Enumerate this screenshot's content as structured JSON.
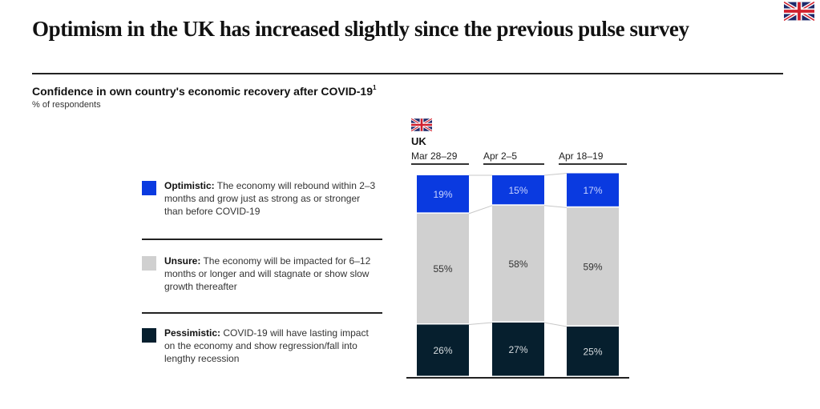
{
  "header": {
    "title": "Optimism in the UK has increased slightly since the previous pulse survey",
    "flag_icon": "uk-flag-icon"
  },
  "chart_data": {
    "type": "bar",
    "stacked": true,
    "title": "Confidence in own country's economic recovery after COVID-19",
    "title_footnote": "1",
    "unit_label": "% of respondents",
    "country": "UK",
    "categories": [
      "Mar 28–29",
      "Apr 2–5",
      "Apr 18–19"
    ],
    "series": [
      {
        "name": "Pessimistic",
        "color": "#061f2e",
        "values": [
          26,
          27,
          25
        ],
        "labels": [
          "26%",
          "27%",
          "25%"
        ],
        "label_color": "#d8dde0"
      },
      {
        "name": "Unsure",
        "color": "#d0d0d0",
        "values": [
          55,
          58,
          59
        ],
        "labels": [
          "55%",
          "58%",
          "59%"
        ],
        "label_color": "#333333"
      },
      {
        "name": "Optimistic",
        "color": "#0a3ae0",
        "values": [
          19,
          15,
          17
        ],
        "labels": [
          "19%",
          "15%",
          "17%"
        ],
        "label_color": "#c9d4ff"
      }
    ],
    "ylim": [
      0,
      100
    ],
    "xlabel": "",
    "ylabel": "",
    "grid": false,
    "legend_placement": "left"
  },
  "legend": [
    {
      "key": "Optimistic",
      "bold": "Optimistic:",
      "text": " The economy will rebound within 2–3 months and grow just as strong as or stronger than before COVID-19",
      "color": "#0a3ae0"
    },
    {
      "key": "Unsure",
      "bold": "Unsure:",
      "text": " The economy will be impacted for 6–12 months or longer and will stagnate or show slow growth thereafter",
      "color": "#d0d0d0"
    },
    {
      "key": "Pessimistic",
      "bold": "Pessimistic:",
      "text": " COVID-19 will have lasting impact on the economy and show regression/fall into lengthy recession",
      "color": "#061f2e"
    }
  ]
}
